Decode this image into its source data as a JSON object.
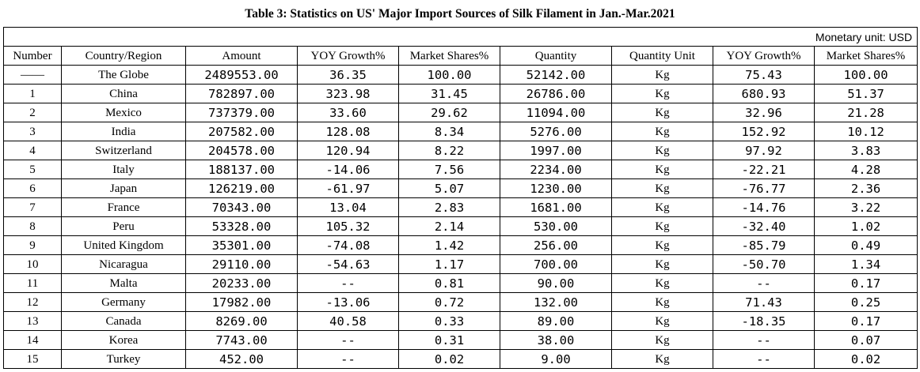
{
  "title": "Table 3: Statistics on US' Major Import Sources of Silk Filament in Jan.-Mar.2021",
  "unit_note": "Monetary unit: USD",
  "headers": [
    "Number",
    "Country/Region",
    "Amount",
    "YOY Growth%",
    "Market Shares%",
    "Quantity",
    "Quantity Unit",
    "YOY Growth%",
    "Market Shares%"
  ],
  "rows": [
    [
      "——",
      "The Globe",
      "2489553.00",
      "36.35",
      "100.00",
      "52142.00",
      "Kg",
      "75.43",
      "100.00"
    ],
    [
      "1",
      "China",
      "782897.00",
      "323.98",
      "31.45",
      "26786.00",
      "Kg",
      "680.93",
      "51.37"
    ],
    [
      "2",
      "Mexico",
      "737379.00",
      "33.60",
      "29.62",
      "11094.00",
      "Kg",
      "32.96",
      "21.28"
    ],
    [
      "3",
      "India",
      "207582.00",
      "128.08",
      "8.34",
      "5276.00",
      "Kg",
      "152.92",
      "10.12"
    ],
    [
      "4",
      "Switzerland",
      "204578.00",
      "120.94",
      "8.22",
      "1997.00",
      "Kg",
      "97.92",
      "3.83"
    ],
    [
      "5",
      "Italy",
      "188137.00",
      "-14.06",
      "7.56",
      "2234.00",
      "Kg",
      "-22.21",
      "4.28"
    ],
    [
      "6",
      "Japan",
      "126219.00",
      "-61.97",
      "5.07",
      "1230.00",
      "Kg",
      "-76.77",
      "2.36"
    ],
    [
      "7",
      "France",
      "70343.00",
      "13.04",
      "2.83",
      "1681.00",
      "Kg",
      "-14.76",
      "3.22"
    ],
    [
      "8",
      "Peru",
      "53328.00",
      "105.32",
      "2.14",
      "530.00",
      "Kg",
      "-32.40",
      "1.02"
    ],
    [
      "9",
      "United Kingdom",
      "35301.00",
      "-74.08",
      "1.42",
      "256.00",
      "Kg",
      "-85.79",
      "0.49"
    ],
    [
      "10",
      "Nicaragua",
      "29110.00",
      "-54.63",
      "1.17",
      "700.00",
      "Kg",
      "-50.70",
      "1.34"
    ],
    [
      "11",
      "Malta",
      "20233.00",
      "--",
      "0.81",
      "90.00",
      "Kg",
      "--",
      "0.17"
    ],
    [
      "12",
      "Germany",
      "17982.00",
      "-13.06",
      "0.72",
      "132.00",
      "Kg",
      "71.43",
      "0.25"
    ],
    [
      "13",
      "Canada",
      "8269.00",
      "40.58",
      "0.33",
      "89.00",
      "Kg",
      "-18.35",
      "0.17"
    ],
    [
      "14",
      "Korea",
      "7743.00",
      "--",
      "0.31",
      "38.00",
      "Kg",
      "--",
      "0.07"
    ],
    [
      "15",
      "Turkey",
      "452.00",
      "--",
      "0.02",
      "9.00",
      "Kg",
      "--",
      "0.02"
    ]
  ]
}
